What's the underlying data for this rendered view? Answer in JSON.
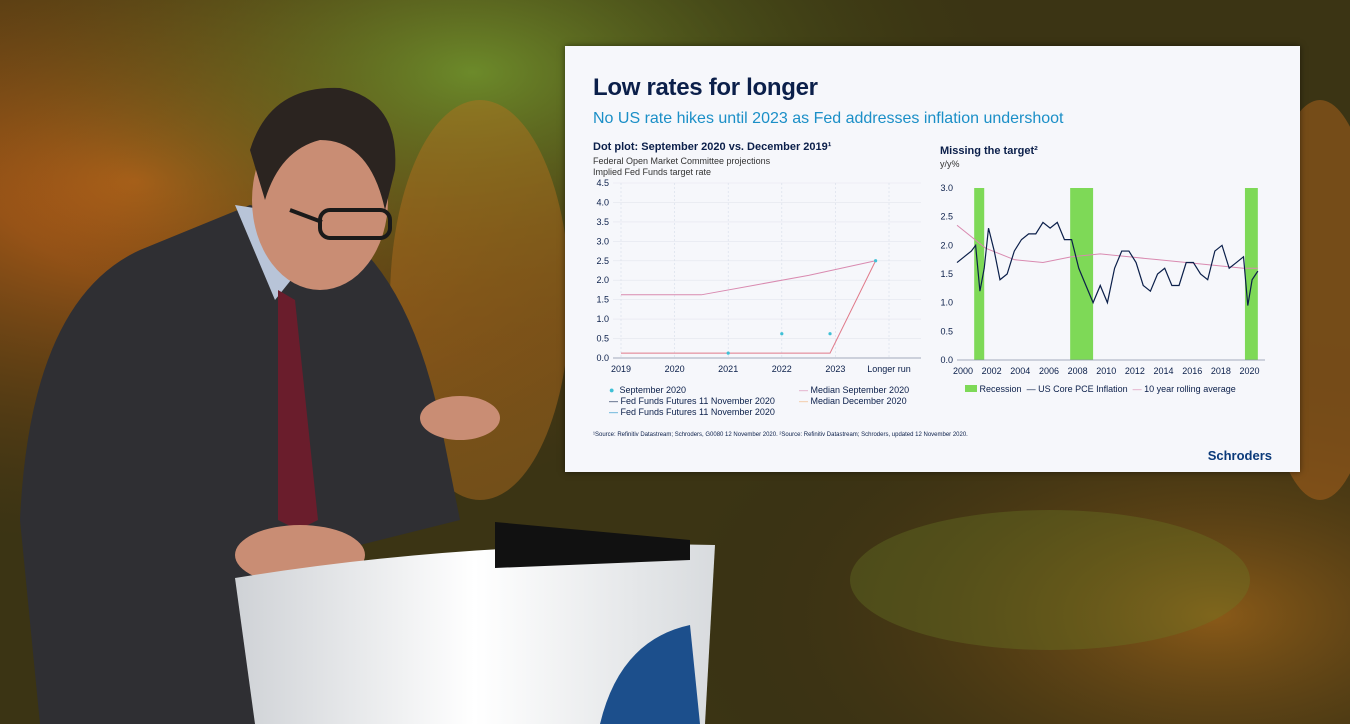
{
  "slide": {
    "title": "Low rates for longer",
    "subtitle": "No US rate hikes until 2023 as Fed addresses inflation undershoot",
    "brand": "Schroders",
    "source": "¹Source: Refinitiv Datastream; Schroders, G0080 12 November 2020. ²Source: Refinitiv Datastream; Schroders, updated 12 November 2020."
  },
  "colors": {
    "navy": "#0b1f4a",
    "cyan": "#1b8fc7",
    "recession": "#7ed957",
    "pink": "#d98ab0",
    "dots": "#3fc0d6"
  },
  "chart_data": [
    {
      "type": "scatter",
      "title": "Dot plot: September 2020 vs. December 2019¹",
      "notes": [
        "Federal Open Market Committee projections",
        "Implied Fed Funds target rate"
      ],
      "x_ticks": [
        "2019",
        "2020",
        "2021",
        "2022",
        "2023",
        "Longer run"
      ],
      "y_ticks": [
        "0.0",
        "0.5",
        "1.0",
        "1.5",
        "2.0",
        "2.5",
        "3.0",
        "3.5",
        "4.0",
        "4.5"
      ],
      "ylim": [
        0,
        4.5
      ],
      "legend": [
        "September 2020",
        "Fed Funds Futures 11 November 2020",
        "Fed Funds Futures 11 November 2020",
        "Median September 2020",
        "Median December 2020"
      ],
      "median_sep_2020": {
        "x": [
          0,
          1,
          2,
          3,
          3.9,
          4.75
        ],
        "y": [
          0.125,
          0.125,
          0.125,
          0.125,
          0.125,
          2.5
        ]
      },
      "median_dec_2019": {
        "x": [
          0,
          1.5,
          2.5,
          3.5,
          4.75
        ],
        "y": [
          1.625,
          1.625,
          1.875,
          2.125,
          2.5
        ]
      },
      "sep_2020_dots": {
        "x": [
          2,
          3,
          3.9,
          4.75
        ],
        "y": [
          0.125,
          0.625,
          0.625,
          2.5
        ]
      }
    },
    {
      "type": "line",
      "title": "Missing the target²",
      "ylabel": "y/y%",
      "x_ticks": [
        "2000",
        "2002",
        "2004",
        "2006",
        "2008",
        "2010",
        "2012",
        "2014",
        "2016",
        "2018",
        "2020"
      ],
      "y_ticks": [
        "0.0",
        "0.5",
        "1.0",
        "1.5",
        "2.0",
        "2.5",
        "3.0"
      ],
      "ylim": [
        0,
        3
      ],
      "xlim": [
        2000,
        2021.5
      ],
      "legend": [
        "Recession",
        "US Core PCE Inflation",
        "10 year rolling average"
      ],
      "recessions": [
        [
          2001.2,
          2001.9
        ],
        [
          2007.9,
          2009.5
        ],
        [
          2020.1,
          2021.0
        ]
      ],
      "core_pce": {
        "x": [
          2000,
          2000.5,
          2001,
          2001.3,
          2001.6,
          2001.9,
          2002.2,
          2002.6,
          2003,
          2003.5,
          2004,
          2004.5,
          2005,
          2005.5,
          2006,
          2006.5,
          2007,
          2007.5,
          2008,
          2008.5,
          2009,
          2009.5,
          2010,
          2010.5,
          2011,
          2011.5,
          2012,
          2012.5,
          2013,
          2013.5,
          2014,
          2014.5,
          2015,
          2015.5,
          2016,
          2016.5,
          2017,
          2017.5,
          2018,
          2018.5,
          2019,
          2019.5,
          2020,
          2020.3,
          2020.6,
          2021
        ],
        "y": [
          1.7,
          1.8,
          1.9,
          2.0,
          1.2,
          1.6,
          2.3,
          1.9,
          1.4,
          1.5,
          1.9,
          2.1,
          2.2,
          2.2,
          2.4,
          2.3,
          2.4,
          2.1,
          2.1,
          1.6,
          1.3,
          1.0,
          1.3,
          1.0,
          1.6,
          1.9,
          1.9,
          1.7,
          1.3,
          1.2,
          1.5,
          1.6,
          1.3,
          1.3,
          1.7,
          1.7,
          1.5,
          1.4,
          1.9,
          2.0,
          1.6,
          1.7,
          1.8,
          0.95,
          1.4,
          1.55
        ]
      },
      "rolling_avg": {
        "x": [
          2000,
          2002,
          2004,
          2006,
          2008,
          2010,
          2012,
          2014,
          2016,
          2018,
          2020,
          2021
        ],
        "y": [
          2.35,
          1.95,
          1.75,
          1.7,
          1.8,
          1.85,
          1.8,
          1.75,
          1.7,
          1.65,
          1.6,
          1.6
        ]
      }
    }
  ]
}
